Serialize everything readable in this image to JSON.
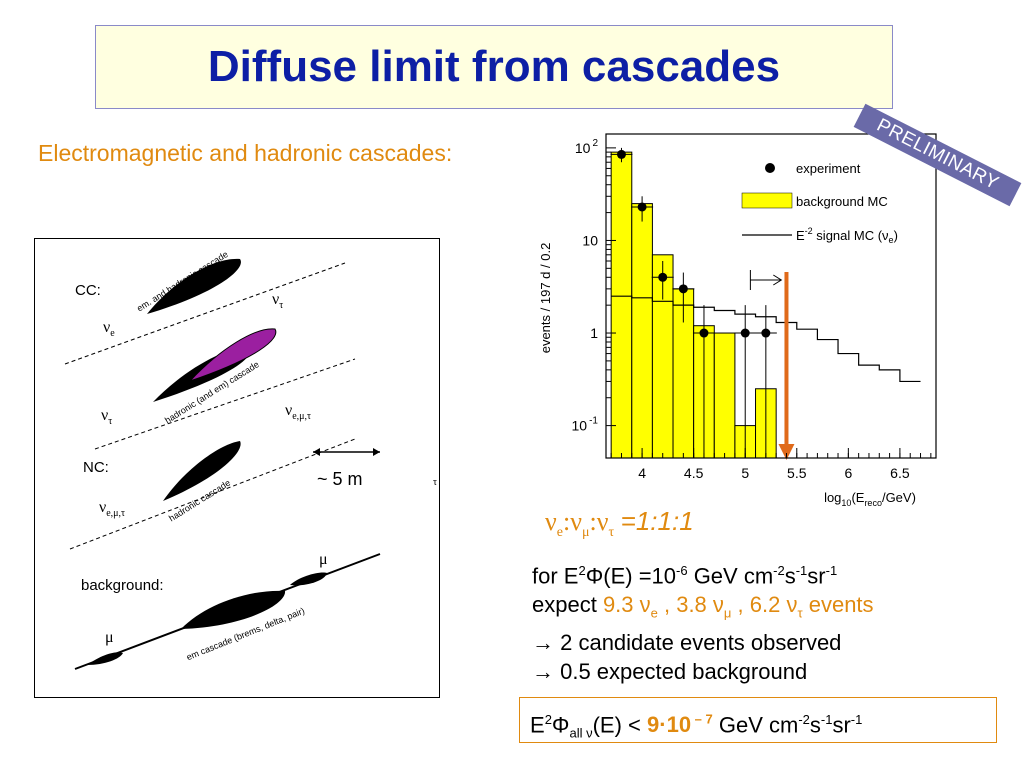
{
  "title": "Diffuse limit from cascades",
  "subtitle": "Electromagnetic and hadronic cascades:",
  "preliminary": "PRELIMINARY",
  "diagram": {
    "cc_label": "CC:",
    "nc_label": "NC:",
    "background_label": "background:",
    "nu_e": "ν",
    "nu_e_sub": "e",
    "nu_tau": "ν",
    "nu_tau_sub": "τ",
    "nu_tau2_sub": "τ",
    "nu_emt_sub": "e,μ,τ",
    "em_hadronic": "em. and hadronic cascade",
    "hadronic_em": "hadronic (and em) cascade",
    "hadronic": "hadronic cascade",
    "em_brems": "em cascade (brems, delta, pair)",
    "scale": "~ 5 m",
    "mu": "μ",
    "tau_small": "τ"
  },
  "ratio": {
    "nu": "ν",
    "e": "e",
    "mu": "μ",
    "tau": "τ",
    "colon": ":",
    "value": "=1:1:1"
  },
  "info": {
    "line1_pre": "for E",
    "line1_sup2": "2",
    "line1_phi": "Φ(E) =10",
    "line1_exp": "-6",
    "line1_unit": " GeV cm",
    "line1_cm_exp": "-2",
    "line1_s": "s",
    "line1_s_exp": "-1",
    "line1_sr": "sr",
    "line1_sr_exp": "-1",
    "line2_pre": "expect ",
    "line2_e": "9.3 ν",
    "line2_e_sub": "e",
    "line2_mu": " , 3.8 ν",
    "line2_mu_sub": "μ",
    "line2_tau": " , 6.2 ν",
    "line2_tau_sub": "τ",
    "line2_post": "  events",
    "line3": "→ 2 candidate events observed",
    "line4": "→ 0.5 expected background"
  },
  "limit": {
    "pre": "E",
    "sup2": "2",
    "phi": "Φ",
    "sub": "all ν",
    "mid": "(E) <  ",
    "bold": "9·10",
    "exp": " – 7",
    "unit": " GeV cm",
    "cm_exp": "-2",
    "s": "s",
    "s_exp": "-1",
    "sr": "sr",
    "sr_exp": "-1"
  },
  "chart_data": {
    "type": "bar",
    "ylabel": "events / 197 d / 0.2",
    "xlabel": "log10(Ereco/GeV)",
    "xlim": [
      3.65,
      6.85
    ],
    "ylim_log10": [
      -1.35,
      2.15
    ],
    "yscale": "log",
    "x_ticks": [
      4,
      4.5,
      5,
      5.5,
      6,
      6.5
    ],
    "x_tick_labels": [
      "4",
      "4.5",
      "5",
      "5.5",
      "6",
      "6.5"
    ],
    "y_ticks": [
      0.1,
      1,
      10,
      100
    ],
    "y_tick_labels": [
      "10 -1",
      "1",
      "10",
      "10 2"
    ],
    "legend": [
      {
        "name": "experiment",
        "kind": "marker"
      },
      {
        "name": "background MC",
        "kind": "fill",
        "color": "#ffff00"
      },
      {
        "name": "E-2 signal MC (νe)",
        "kind": "line"
      }
    ],
    "background_mc": {
      "edges": [
        3.7,
        3.9,
        4.1,
        4.3,
        4.5,
        4.7,
        4.9,
        5.1,
        5.3
      ],
      "values": [
        90,
        25,
        7,
        3,
        1.2,
        1.0,
        0.1,
        0.25
      ]
    },
    "signal_mc": {
      "edges": [
        3.7,
        3.9,
        4.1,
        4.3,
        4.5,
        4.7,
        4.9,
        5.1,
        5.3,
        5.5,
        5.7,
        5.9,
        6.1,
        6.3,
        6.5,
        6.7
      ],
      "values": [
        2.5,
        2.4,
        2.2,
        2.0,
        1.9,
        1.75,
        1.6,
        1.5,
        1.3,
        1.1,
        0.85,
        0.6,
        0.45,
        0.4,
        0.3
      ]
    },
    "experiment": [
      {
        "x": 3.8,
        "y": 85,
        "ylo": 70,
        "yhi": 100
      },
      {
        "x": 4.0,
        "y": 23,
        "ylo": 16,
        "yhi": 30
      },
      {
        "x": 4.2,
        "y": 4,
        "ylo": 2.3,
        "yhi": 6
      },
      {
        "x": 4.4,
        "y": 3,
        "ylo": 1.3,
        "yhi": 4.5
      },
      {
        "x": 4.6,
        "y": 1,
        "ylo": 0.01,
        "yhi": 2
      },
      {
        "x": 5.0,
        "y": 1,
        "ylo": 0.01,
        "yhi": 2
      },
      {
        "x": 5.2,
        "y": 1,
        "ylo": 0.01,
        "yhi": 2
      }
    ],
    "cut_x": 5.4,
    "arrow_label": "|→"
  }
}
